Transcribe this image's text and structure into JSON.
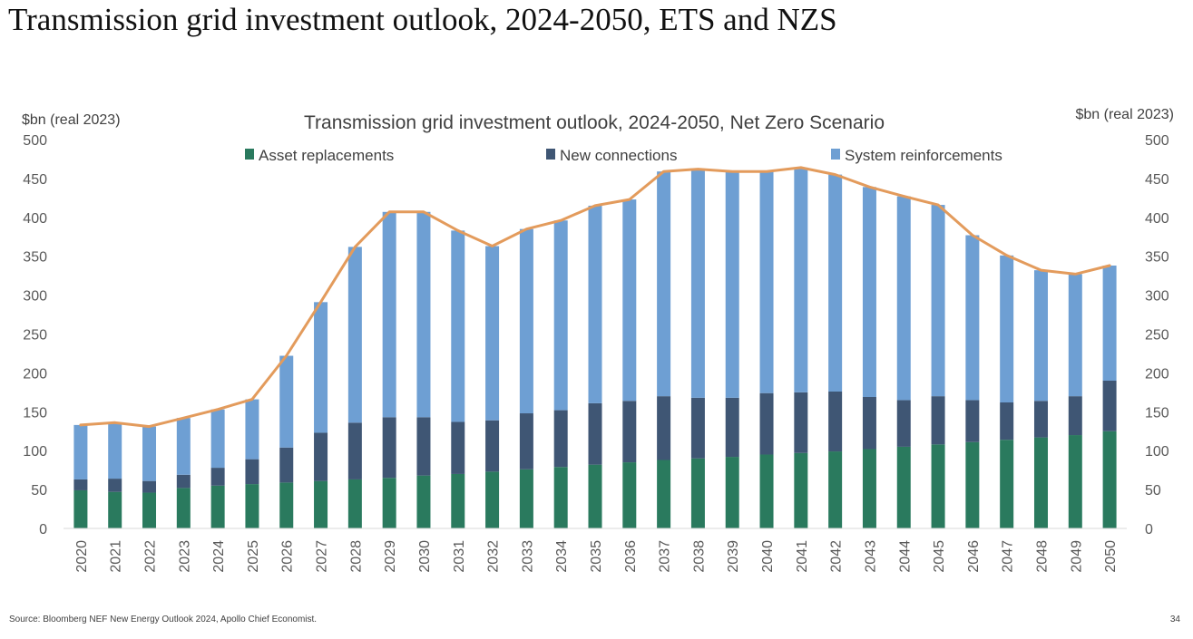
{
  "slide": {
    "title": "Transmission grid investment outlook, 2024-2050, ETS and NZS",
    "source": "Source: Bloomberg NEF New Energy Outlook 2024, Apollo Chief Economist.",
    "page_number": "34"
  },
  "chart_data": {
    "type": "bar",
    "stacked": true,
    "title": "Transmission grid investment outlook, 2024-2050, Net Zero Scenario",
    "ylabel_left": "$bn (real 2023)",
    "ylabel_right": "$bn (real 2023)",
    "ylim": [
      0,
      500
    ],
    "yticks": [
      0,
      50,
      100,
      150,
      200,
      250,
      300,
      350,
      400,
      450,
      500
    ],
    "legend_position": "top",
    "grid": false,
    "categories": [
      "2020",
      "2021",
      "2022",
      "2023",
      "2024",
      "2025",
      "2026",
      "2027",
      "2028",
      "2029",
      "2030",
      "2031",
      "2032",
      "2033",
      "2034",
      "2035",
      "2036",
      "2037",
      "2038",
      "2039",
      "2040",
      "2041",
      "2042",
      "2043",
      "2044",
      "2045",
      "2046",
      "2047",
      "2048",
      "2049",
      "2050"
    ],
    "series": [
      {
        "name": "Asset replacements",
        "color": "#2a7a5e",
        "values": [
          49,
          47,
          46,
          52,
          55,
          57,
          59,
          61,
          63,
          65,
          68,
          70,
          73,
          76,
          79,
          82,
          85,
          88,
          90,
          92,
          95,
          97,
          99,
          102,
          105,
          108,
          111,
          114,
          117,
          120,
          125
        ]
      },
      {
        "name": "New connections",
        "color": "#3f5674",
        "values": [
          14,
          17,
          15,
          17,
          23,
          32,
          45,
          62,
          73,
          78,
          75,
          67,
          66,
          72,
          73,
          79,
          79,
          82,
          78,
          76,
          79,
          78,
          77,
          67,
          60,
          62,
          54,
          48,
          47,
          50,
          65
        ]
      },
      {
        "name": "System reinforcements",
        "color": "#6e9fd3",
        "values": [
          70,
          72,
          70,
          73,
          75,
          77,
          118,
          168,
          226,
          264,
          264,
          246,
          224,
          237,
          244,
          254,
          259,
          289,
          294,
          291,
          285,
          289,
          279,
          270,
          262,
          246,
          212,
          189,
          168,
          157,
          148
        ]
      }
    ],
    "line": {
      "color": "#e39b5c",
      "values": [
        133,
        136,
        131,
        142,
        153,
        166,
        222,
        291,
        362,
        407,
        407,
        383,
        363,
        385,
        396,
        415,
        423,
        459,
        462,
        459,
        459,
        464,
        455,
        439,
        427,
        416,
        377,
        351,
        332,
        327,
        338
      ]
    }
  }
}
